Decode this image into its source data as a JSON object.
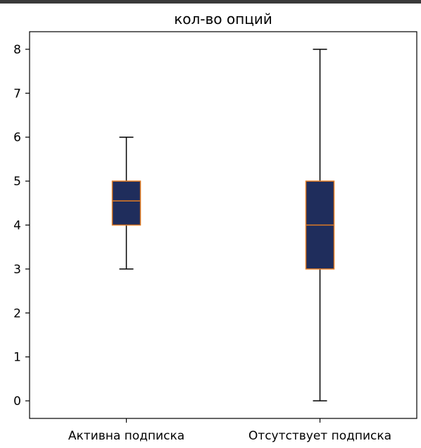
{
  "chart_data": {
    "type": "box",
    "title": "кол-во опций",
    "xlabel": "",
    "ylabel": "",
    "ylim": [
      -0.4,
      8.4
    ],
    "yticks": [
      0,
      1,
      2,
      3,
      4,
      5,
      6,
      7,
      8
    ],
    "categories": [
      "Активна подписка",
      "Отсутствует подписка"
    ],
    "boxes": [
      {
        "category": "Активна подписка",
        "whisker_low": 3,
        "q1": 4,
        "median": 4.55,
        "q3": 5,
        "whisker_high": 6
      },
      {
        "category": "Отсутствует подписка",
        "whisker_low": 0,
        "q1": 3,
        "median": 4,
        "q3": 5,
        "whisker_high": 8
      }
    ],
    "grid": false,
    "colors": {
      "box_fill": "#1f2d5c",
      "box_edge": "#e07b24",
      "median": "#e07b24",
      "whisker": "#000000",
      "axis": "#000000"
    }
  }
}
